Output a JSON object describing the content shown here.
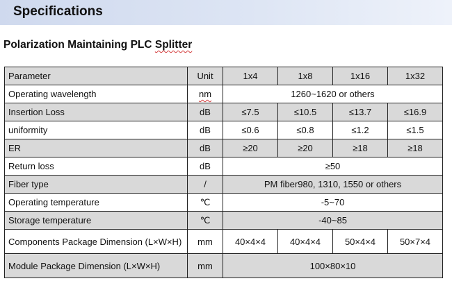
{
  "header": {
    "title": "Specifications"
  },
  "product": {
    "title": "Polarization Maintaining PLC Splitter"
  },
  "table": {
    "headers": [
      "Parameter",
      "Unit",
      "1x4",
      "1x8",
      "1x16",
      "1x32"
    ],
    "rows": [
      {
        "parameter": "Operating wavelength",
        "unit": "nm",
        "values": [
          "1260~1620 or others"
        ]
      },
      {
        "parameter": "Insertion Loss",
        "unit": "dB",
        "values": [
          "≤7.5",
          "≤10.5",
          "≤13.7",
          "≤16.9"
        ]
      },
      {
        "parameter": "uniformity",
        "unit": "dB",
        "values": [
          "≤0.6",
          "≤0.8",
          "≤1.2",
          "≤1.5"
        ]
      },
      {
        "parameter": "ER",
        "unit": "dB",
        "values": [
          "≥20",
          "≥20",
          "≥18",
          "≥18"
        ]
      },
      {
        "parameter": "Return loss",
        "unit": "dB",
        "values": [
          "≥50"
        ]
      },
      {
        "parameter": "Fiber type",
        "unit": "/",
        "values": [
          "PM fiber980, 1310, 1550 or others"
        ]
      },
      {
        "parameter": "Operating temperature",
        "unit": "℃",
        "values": [
          "-5~70"
        ]
      },
      {
        "parameter": "Storage temperature",
        "unit": "℃",
        "values": [
          "-40~85"
        ]
      },
      {
        "parameter": "Components Package Dimension (L×W×H)",
        "unit": "mm",
        "values": [
          "40×4×4",
          "40×4×4",
          "50×4×4",
          "50×7×4"
        ]
      },
      {
        "parameter": "Module Package Dimension (L×W×H)",
        "unit": "mm",
        "values": [
          "100×80×10"
        ]
      }
    ]
  },
  "colors": {
    "header_band": "#d3dcf0",
    "row_gray": "#d9d9d9",
    "row_white": "#ffffff",
    "border": "#222222",
    "spellcheck_squiggle": "#d43c3c"
  }
}
